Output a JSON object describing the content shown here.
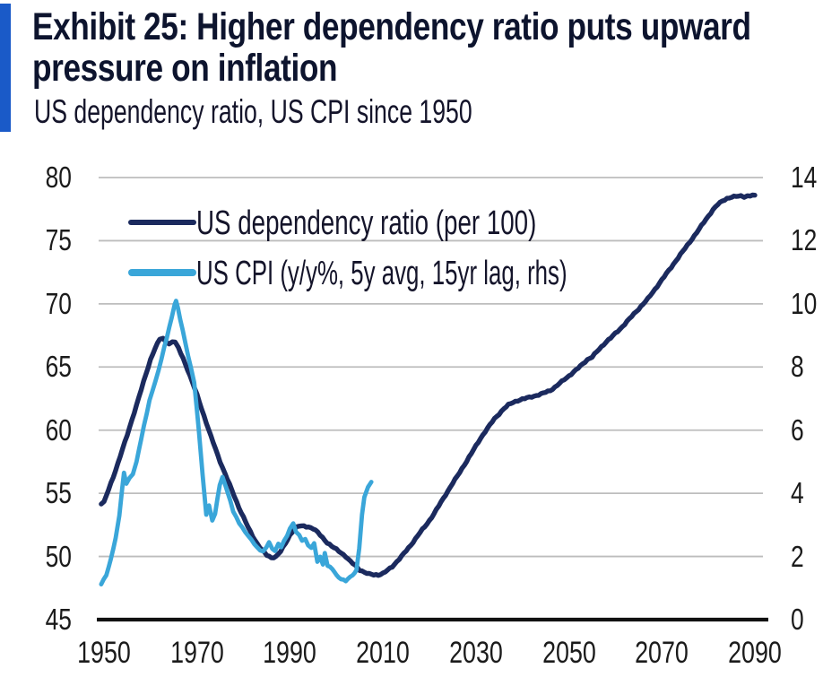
{
  "page": {
    "accent_color": "#1a5ac8",
    "background": "#ffffff"
  },
  "header": {
    "title_line1": "Exhibit 25: Higher dependency ratio puts upward",
    "title_line2": "pressure on inflation",
    "subtitle": "US dependency ratio, US CPI since 1950",
    "title_color": "#0d142e",
    "subtitle_color": "#14142a"
  },
  "chart_data": {
    "type": "line",
    "title": "Exhibit 25: Higher dependency ratio puts upward pressure on inflation",
    "subtitle": "US dependency ratio, US CPI since 1950",
    "grid": "horizontal",
    "gridline_color": "#bdbdbd",
    "axis_line_color": "#111111",
    "tick_label_color": "#1b1b1b",
    "legend_position": "top-left-inside",
    "x_axis": {
      "ticks": [
        1950,
        1970,
        1990,
        2010,
        2030,
        2050,
        2070,
        2090
      ],
      "min": 1949,
      "max": 2091
    },
    "y_left": {
      "ticks": [
        45,
        50,
        55,
        60,
        65,
        70,
        75,
        80
      ],
      "min": 45,
      "max": 80
    },
    "y_right": {
      "ticks": [
        0,
        2,
        4,
        6,
        8,
        10,
        12,
        14
      ],
      "min": 0,
      "max": 14
    },
    "series": [
      {
        "name": "US dependency ratio (per 100)",
        "axis": "left",
        "color": "#1b2a5e",
        "points": [
          [
            1949.4,
            54.15
          ],
          [
            1950,
            54.3
          ],
          [
            1951,
            55.3
          ],
          [
            1952,
            56.3
          ],
          [
            1953,
            57.4
          ],
          [
            1954,
            58.5
          ],
          [
            1955,
            59.6
          ],
          [
            1956,
            60.8
          ],
          [
            1957,
            62.0
          ],
          [
            1958,
            63.2
          ],
          [
            1959,
            64.4
          ],
          [
            1960,
            65.6
          ],
          [
            1961,
            66.5
          ],
          [
            1962,
            67.2
          ],
          [
            1962.7,
            67.25
          ],
          [
            1963.3,
            67.0
          ],
          [
            1964,
            66.85
          ],
          [
            1964.7,
            67.0
          ],
          [
            1965.3,
            67.0
          ],
          [
            1966,
            66.5
          ],
          [
            1967,
            65.7
          ],
          [
            1968,
            64.8
          ],
          [
            1969,
            63.8
          ],
          [
            1970,
            62.8
          ],
          [
            1971,
            61.7
          ],
          [
            1972,
            60.6
          ],
          [
            1973,
            59.5
          ],
          [
            1974,
            58.5
          ],
          [
            1975,
            57.5
          ],
          [
            1976,
            56.6
          ],
          [
            1977,
            55.7
          ],
          [
            1978,
            54.8
          ],
          [
            1979,
            53.9
          ],
          [
            1980,
            53.1
          ],
          [
            1981,
            52.3
          ],
          [
            1982,
            51.6
          ],
          [
            1983,
            51.0
          ],
          [
            1984,
            50.5
          ],
          [
            1985,
            50.1
          ],
          [
            1986,
            49.9
          ],
          [
            1987,
            50.0
          ],
          [
            1988,
            50.4
          ],
          [
            1989,
            51.0
          ],
          [
            1990,
            51.7
          ],
          [
            1991,
            52.2
          ],
          [
            1992,
            52.4
          ],
          [
            1993,
            52.4
          ],
          [
            1994,
            52.35
          ],
          [
            1995,
            52.2
          ],
          [
            1996,
            51.9
          ],
          [
            1997,
            51.5
          ],
          [
            1998,
            51.1
          ],
          [
            1999,
            50.8
          ],
          [
            2000,
            50.55
          ],
          [
            2001,
            50.3
          ],
          [
            2002,
            50.0
          ],
          [
            2003,
            49.6
          ],
          [
            2004,
            49.3
          ],
          [
            2005,
            48.95
          ],
          [
            2006,
            48.75
          ],
          [
            2007,
            48.6
          ],
          [
            2008,
            48.55
          ],
          [
            2009,
            48.55
          ],
          [
            2010,
            48.65
          ],
          [
            2011,
            48.9
          ],
          [
            2012,
            49.2
          ],
          [
            2013,
            49.6
          ],
          [
            2014,
            50.0
          ],
          [
            2015,
            50.45
          ],
          [
            2016,
            50.9
          ],
          [
            2017,
            51.4
          ],
          [
            2018,
            51.9
          ],
          [
            2019,
            52.35
          ],
          [
            2020,
            52.85
          ],
          [
            2021,
            53.4
          ],
          [
            2022,
            54.0
          ],
          [
            2023,
            54.6
          ],
          [
            2024,
            55.2
          ],
          [
            2025,
            55.8
          ],
          [
            2026,
            56.35
          ],
          [
            2027,
            56.95
          ],
          [
            2028,
            57.55
          ],
          [
            2029,
            58.15
          ],
          [
            2030,
            58.75
          ],
          [
            2031,
            59.35
          ],
          [
            2032,
            59.9
          ],
          [
            2033,
            60.4
          ],
          [
            2034,
            60.9
          ],
          [
            2035,
            61.3
          ],
          [
            2036,
            61.7
          ],
          [
            2037,
            62.0
          ],
          [
            2038,
            62.2
          ],
          [
            2039,
            62.35
          ],
          [
            2040,
            62.45
          ],
          [
            2041,
            62.55
          ],
          [
            2042,
            62.65
          ],
          [
            2043,
            62.75
          ],
          [
            2044,
            62.85
          ],
          [
            2045,
            63.0
          ],
          [
            2046,
            63.15
          ],
          [
            2047,
            63.4
          ],
          [
            2048,
            63.7
          ],
          [
            2049,
            64.0
          ],
          [
            2050,
            64.3
          ],
          [
            2051,
            64.6
          ],
          [
            2052,
            64.9
          ],
          [
            2053,
            65.25
          ],
          [
            2054,
            65.6
          ],
          [
            2055,
            65.8
          ],
          [
            2056,
            66.2
          ],
          [
            2057,
            66.6
          ],
          [
            2058,
            67.0
          ],
          [
            2059,
            67.3
          ],
          [
            2060,
            67.65
          ],
          [
            2061,
            68.0
          ],
          [
            2062,
            68.4
          ],
          [
            2063,
            68.8
          ],
          [
            2064,
            69.2
          ],
          [
            2065,
            69.6
          ],
          [
            2066,
            70.0
          ],
          [
            2067,
            70.4
          ],
          [
            2068,
            70.9
          ],
          [
            2069,
            71.4
          ],
          [
            2070,
            71.9
          ],
          [
            2071,
            72.4
          ],
          [
            2072,
            72.9
          ],
          [
            2073,
            73.4
          ],
          [
            2074,
            73.9
          ],
          [
            2075,
            74.4
          ],
          [
            2076,
            74.9
          ],
          [
            2077,
            75.4
          ],
          [
            2078,
            75.9
          ],
          [
            2079,
            76.45
          ],
          [
            2080,
            76.95
          ],
          [
            2081,
            77.45
          ],
          [
            2082,
            77.85
          ],
          [
            2083,
            78.15
          ],
          [
            2084,
            78.35
          ],
          [
            2085,
            78.45
          ],
          [
            2086,
            78.5
          ],
          [
            2087,
            78.55
          ],
          [
            2087.7,
            78.45
          ],
          [
            2088.4,
            78.5
          ],
          [
            2089,
            78.55
          ],
          [
            2090,
            78.6
          ]
        ]
      },
      {
        "name": "US CPI (y/y%, 5y avg, 15yr lag, rhs)",
        "axis": "right",
        "color": "#3aa6d9",
        "points": [
          [
            1949.4,
            1.12
          ],
          [
            1950.5,
            1.4
          ],
          [
            1951.5,
            1.92
          ],
          [
            1952.5,
            2.6
          ],
          [
            1953.3,
            3.28
          ],
          [
            1953.9,
            4.12
          ],
          [
            1954.3,
            4.64
          ],
          [
            1954.8,
            4.32
          ],
          [
            1955.5,
            4.48
          ],
          [
            1956.2,
            4.6
          ],
          [
            1957,
            5.0
          ],
          [
            1958,
            5.72
          ],
          [
            1959.8,
            6.94
          ],
          [
            1961.7,
            7.88
          ],
          [
            1963,
            8.64
          ],
          [
            1964.6,
            9.59
          ],
          [
            1965.2,
            10.0
          ],
          [
            1965.5,
            10.08
          ],
          [
            1965.9,
            9.85
          ],
          [
            1966.9,
            9.2
          ],
          [
            1968.1,
            8.36
          ],
          [
            1969.4,
            7.52
          ],
          [
            1970.4,
            6.0
          ],
          [
            1971.2,
            4.6
          ],
          [
            1972,
            3.34
          ],
          [
            1972.6,
            3.62
          ],
          [
            1973.3,
            3.15
          ],
          [
            1973.9,
            3.36
          ],
          [
            1974.9,
            4.28
          ],
          [
            1975.5,
            4.52
          ],
          [
            1976.5,
            4.08
          ],
          [
            1977.8,
            3.44
          ],
          [
            1979.1,
            3.06
          ],
          [
            1980.4,
            2.76
          ],
          [
            1981.7,
            2.52
          ],
          [
            1983,
            2.28
          ],
          [
            1984.2,
            2.16
          ],
          [
            1984.9,
            2.3
          ],
          [
            1985.5,
            2.44
          ],
          [
            1986.2,
            2.24
          ],
          [
            1986.8,
            2.16
          ],
          [
            1987.5,
            2.4
          ],
          [
            1988.1,
            2.3
          ],
          [
            1988.7,
            2.48
          ],
          [
            1989.4,
            2.68
          ],
          [
            1990,
            2.88
          ],
          [
            1990.7,
            3.06
          ],
          [
            1991.3,
            2.76
          ],
          [
            1992,
            2.68
          ],
          [
            1992.6,
            2.48
          ],
          [
            1993.3,
            2.56
          ],
          [
            1993.9,
            2.36
          ],
          [
            1994.6,
            2.28
          ],
          [
            1995.2,
            2.44
          ],
          [
            1995.9,
            1.82
          ],
          [
            1996.5,
            2.0
          ],
          [
            1997.1,
            1.72
          ],
          [
            1997.5,
            2.12
          ],
          [
            1998.1,
            1.72
          ],
          [
            1999.1,
            1.62
          ],
          [
            2000,
            1.39
          ],
          [
            2001,
            1.29
          ],
          [
            2002,
            1.24
          ],
          [
            2003,
            1.34
          ],
          [
            2003.9,
            1.48
          ],
          [
            2004.3,
            1.56
          ],
          [
            2004.9,
            2.28
          ],
          [
            2005.5,
            3.32
          ],
          [
            2006,
            3.88
          ],
          [
            2006.8,
            4.2
          ],
          [
            2007.5,
            4.36
          ]
        ]
      }
    ]
  }
}
